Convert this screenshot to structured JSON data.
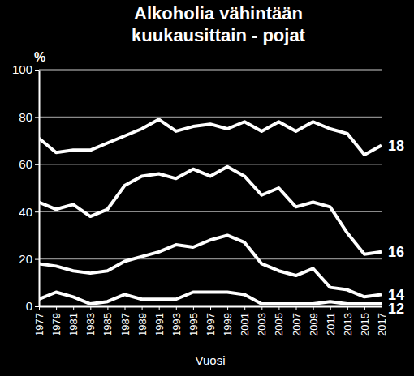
{
  "chart_data": {
    "type": "line",
    "title": "Alkoholia vähintään kuukausittain - pojat",
    "xlabel": "Vuosi",
    "ylabel": "%",
    "x": [
      1977,
      1979,
      1981,
      1983,
      1985,
      1987,
      1989,
      1991,
      1993,
      1995,
      1997,
      1999,
      2001,
      2003,
      2005,
      2007,
      2009,
      2011,
      2013,
      2015,
      2017
    ],
    "series": [
      {
        "name": "18",
        "color": "#ffffff",
        "values": [
          71,
          65,
          66,
          66,
          69,
          72,
          75,
          79,
          74,
          76,
          77,
          75,
          78,
          74,
          78,
          74,
          78,
          75,
          73,
          64,
          68
        ]
      },
      {
        "name": "16",
        "color": "#ffffff",
        "values": [
          44,
          41,
          43,
          38,
          41,
          51,
          55,
          56,
          54,
          58,
          55,
          59,
          55,
          47,
          50,
          42,
          44,
          42,
          31,
          22,
          23
        ]
      },
      {
        "name": "14",
        "color": "#ffffff",
        "values": [
          18,
          17,
          15,
          14,
          15,
          19,
          21,
          23,
          26,
          25,
          28,
          30,
          27,
          18,
          15,
          13,
          16,
          8,
          7,
          4,
          5
        ]
      },
      {
        "name": "12",
        "color": "#ffffff",
        "values": [
          3,
          6,
          4,
          1,
          2,
          5,
          3,
          3,
          3,
          6,
          6,
          6,
          5,
          1,
          1,
          1,
          1,
          2,
          1,
          1,
          1
        ]
      }
    ],
    "xlim": [
      1977,
      2017
    ],
    "xticks": [
      1977,
      1979,
      1981,
      1983,
      1985,
      1987,
      1989,
      1991,
      1993,
      1995,
      1997,
      1999,
      2001,
      2003,
      2005,
      2007,
      2009,
      2011,
      2013,
      2015,
      2017
    ],
    "ylim": [
      0,
      100
    ],
    "yticks": [
      0,
      20,
      40,
      60,
      80,
      100
    ],
    "grid": true
  }
}
